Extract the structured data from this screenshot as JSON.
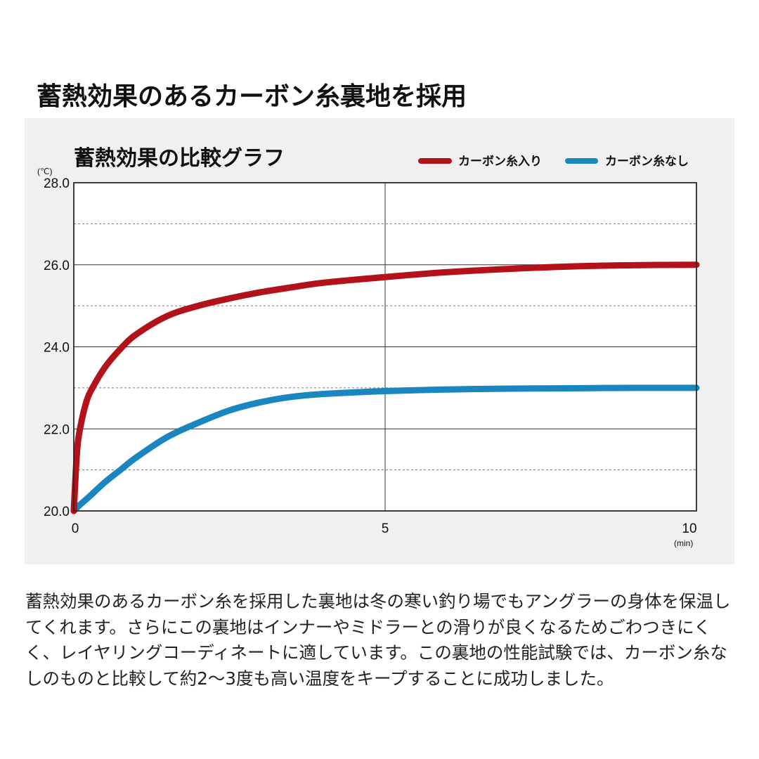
{
  "page_title": "蓄熱効果のあるカーボン糸裏地を採用",
  "description": "蓄熱効果のあるカーボン糸を採用した裏地は冬の寒い釣り場でもアングラーの身体を保温してくれます。さらにこの裏地はインナーやミドラーとの滑りが良くなるためごわつきにくく、レイヤリングコーディネートに適しています。この裏地の性能試験では、カーボン糸なしのものと比較して約2〜3度も高い温度をキープすることに成功しました。",
  "chart_data": {
    "type": "line",
    "title": "蓄熱効果の比較グラフ",
    "ylabel": "(℃)",
    "xlabel": "(min)",
    "xlim": [
      0,
      10
    ],
    "ylim": [
      20.0,
      28.0
    ],
    "xticks": [
      "0",
      "5",
      "10"
    ],
    "xtick_values": [
      0,
      5,
      10
    ],
    "yticks": [
      "20.0",
      "22.0",
      "24.0",
      "26.0",
      "28.0"
    ],
    "ytick_values": [
      20,
      22,
      24,
      26,
      28
    ],
    "minor_gridlines_y": [
      21,
      23,
      25,
      27
    ],
    "grid": true,
    "legend_position": "top-right",
    "series": [
      {
        "name": "カーボン糸入り",
        "color": "#b3121b",
        "x": [
          0,
          0.05,
          0.1,
          0.2,
          0.3,
          0.5,
          0.75,
          1,
          1.5,
          2,
          2.5,
          3,
          3.5,
          4,
          5,
          6,
          7,
          8,
          9,
          10
        ],
        "y": [
          20.0,
          21.4,
          22.0,
          22.65,
          23.0,
          23.5,
          23.95,
          24.3,
          24.75,
          25.0,
          25.18,
          25.33,
          25.45,
          25.56,
          25.7,
          25.82,
          25.9,
          25.96,
          25.99,
          26.0
        ]
      },
      {
        "name": "カーボン糸なし",
        "color": "#1a86c0",
        "x": [
          0,
          0.1,
          0.25,
          0.5,
          0.75,
          1,
          1.5,
          2,
          2.5,
          3,
          3.5,
          4,
          5,
          6,
          7,
          8,
          9,
          10
        ],
        "y": [
          20.0,
          20.15,
          20.35,
          20.7,
          21.0,
          21.3,
          21.8,
          22.15,
          22.45,
          22.65,
          22.78,
          22.85,
          22.92,
          22.96,
          22.98,
          22.99,
          23.0,
          23.0
        ]
      }
    ]
  }
}
